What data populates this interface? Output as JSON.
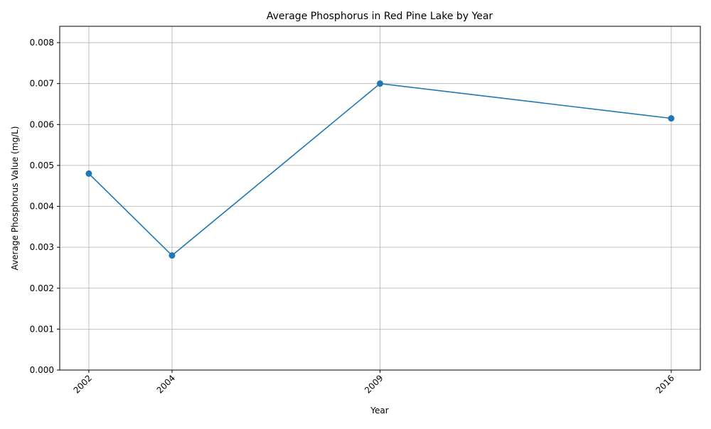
{
  "chart_data": {
    "type": "line",
    "title": "Average Phosphorus in Red Pine Lake by Year",
    "xlabel": "Year",
    "ylabel": "Average Phosphorus Value (mg/L)",
    "x": [
      2002,
      2004,
      2009,
      2016
    ],
    "x_tick_labels": [
      "2002",
      "2004",
      "2009",
      "2016"
    ],
    "series": [
      {
        "values": [
          0.0048,
          0.0028,
          0.007,
          0.00615
        ],
        "color": "#1f77b4",
        "marker": "circle"
      }
    ],
    "xlim": [
      2001.3,
      2016.7
    ],
    "ylim": [
      0,
      0.0084
    ],
    "y_ticks": [
      0,
      0.001,
      0.002,
      0.003,
      0.004,
      0.005,
      0.006,
      0.007,
      0.008
    ],
    "y_tick_labels": [
      "0.000",
      "0.001",
      "0.002",
      "0.003",
      "0.004",
      "0.005",
      "0.006",
      "0.007",
      "0.008"
    ],
    "grid": true,
    "line_color": "#1f77b4",
    "grid_color": "#b0b0b0"
  }
}
